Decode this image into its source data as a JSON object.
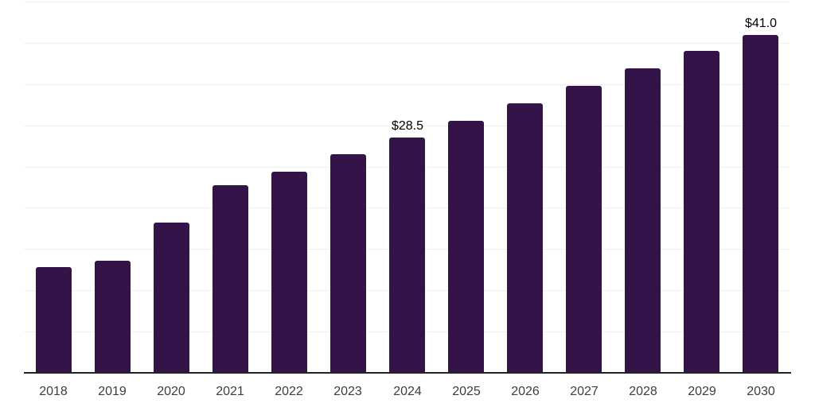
{
  "chart_data": {
    "type": "bar",
    "title": "",
    "xlabel": "",
    "ylabel": "",
    "categories": [
      "2018",
      "2019",
      "2020",
      "2021",
      "2022",
      "2023",
      "2024",
      "2025",
      "2026",
      "2027",
      "2028",
      "2029",
      "2030"
    ],
    "values": [
      12.8,
      13.6,
      18.2,
      22.7,
      24.4,
      26.5,
      28.5,
      30.5,
      32.7,
      34.8,
      36.9,
      39.0,
      41.0
    ],
    "data_labels": [
      {
        "category": "2024",
        "text": "$28.5"
      },
      {
        "category": "2030",
        "text": "$41.0"
      }
    ],
    "ylim": [
      0,
      45
    ],
    "gridline_step": 5,
    "grid": true,
    "legend_position": "none",
    "colors": {
      "bar": "#341349",
      "gridline": "#f0f0f0",
      "axis_line": "#222222",
      "tick_label": "#3d3d3d",
      "data_label": "#000000",
      "background": "#ffffff"
    }
  }
}
